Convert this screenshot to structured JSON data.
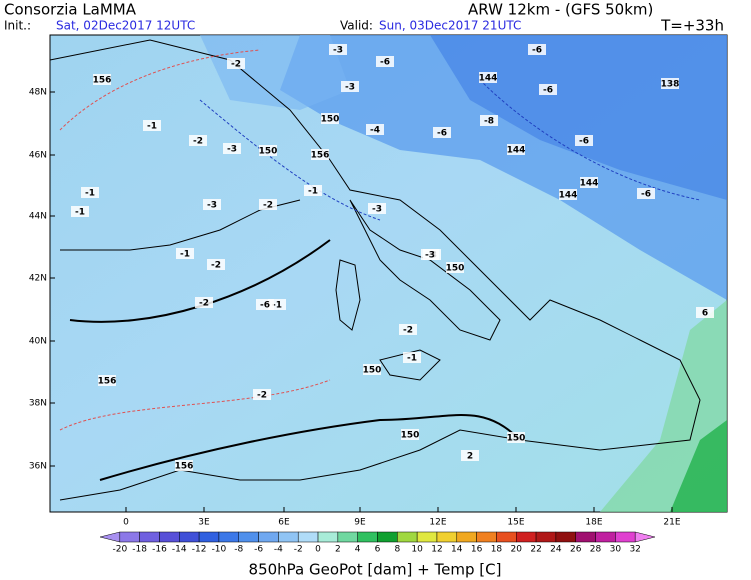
{
  "header": {
    "title": "Consorzia LaMMA",
    "model": "ARW 12km - (GFS 50km)",
    "init_label": "Init.:",
    "init_value": "Sat, 02Dec2017 12UTC",
    "valid_label": "Valid:",
    "valid_value": "Sun, 03Dec2017 21UTC",
    "forecast_time": "T=+33h"
  },
  "map": {
    "lon_labels": [
      "0",
      "3E",
      "6E",
      "9E",
      "12E",
      "15E",
      "18E",
      "21E"
    ],
    "lat_labels": [
      "48N",
      "46N",
      "44N",
      "42N",
      "40N",
      "38N",
      "36N"
    ],
    "contour_labels": [
      "156",
      "-2",
      "-3",
      "-3",
      "-6",
      "144",
      "-6",
      "-6",
      "138",
      "-1",
      "150",
      "-4",
      "-6",
      "144",
      "-8",
      "-6",
      "150",
      "156",
      "-3",
      "-1",
      "144",
      "-6",
      "-2",
      "-3",
      "144",
      "-3",
      "-1",
      "-1",
      "-2",
      "-3",
      "-2",
      "-1",
      "150",
      "-2",
      "-1",
      "150",
      "-6",
      "-2",
      "150",
      "156",
      "-2",
      "156",
      "150",
      "6",
      "2",
      "-3",
      "-1"
    ]
  },
  "colorbar": {
    "labels": [
      -20,
      -18,
      -16,
      -14,
      -12,
      -10,
      -8,
      -6,
      -4,
      -2,
      0,
      2,
      4,
      6,
      8,
      10,
      12,
      14,
      16,
      18,
      20,
      22,
      24,
      26,
      28,
      30,
      32
    ],
    "colors": [
      "#a890f0",
      "#8c78e8",
      "#7060e0",
      "#5850d8",
      "#4050d8",
      "#3060e0",
      "#3c78e8",
      "#5090ec",
      "#70a8f0",
      "#90c4f4",
      "#b0dcf8",
      "#a8ecd8",
      "#70d8a0",
      "#30c060",
      "#10a030",
      "#a0d840",
      "#e0e840",
      "#f0d030",
      "#f0a820",
      "#f08020",
      "#e85020",
      "#d02020",
      "#b01818",
      "#901010",
      "#a01070",
      "#c020a0",
      "#e040d0",
      "#f080f0"
    ],
    "title": "850hPa GeoPot [dam] + Temp [C]"
  }
}
